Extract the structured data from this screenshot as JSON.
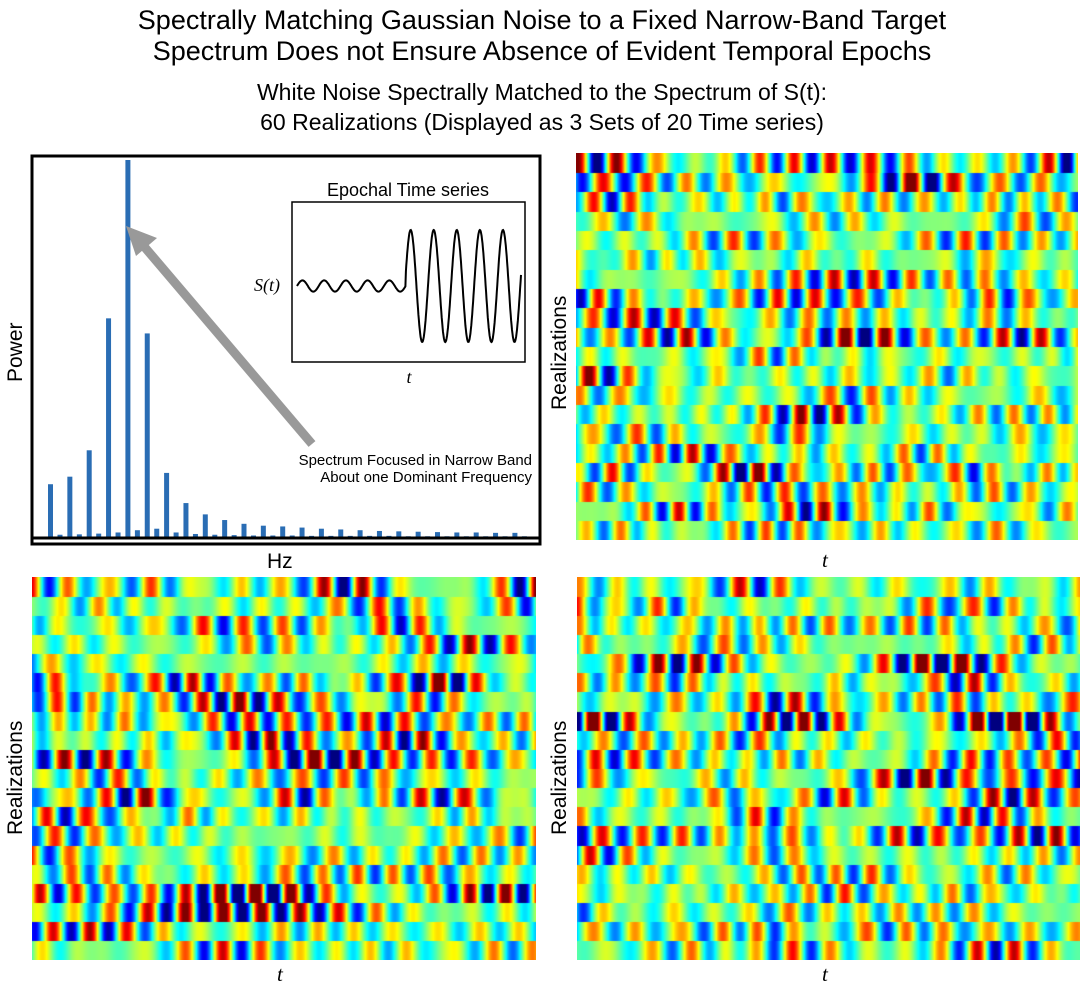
{
  "header": {
    "title_line1": "Spectrally Matching Gaussian Noise to a Fixed Narrow-Band Target",
    "title_line2": "Spectrum Does not Ensure Absence of Evident Temporal Epochs",
    "subtitle_line1": "White Noise Spectrally Matched to the Spectrum of S(t):",
    "subtitle_line2": "60 Realizations (Displayed as 3 Sets of 20 Time series)"
  },
  "colors": {
    "bar": "#2a6db4",
    "arrow": "#999999",
    "axes": "#000000"
  },
  "chart_data": [
    {
      "type": "bar",
      "xlabel": "Hz",
      "ylabel": "Power",
      "ylim": [
        0,
        1
      ],
      "values": [
        0.14,
        0.16,
        0.23,
        0.58,
        1.0,
        0.54,
        0.17,
        0.09,
        0.06,
        0.045,
        0.035,
        0.03,
        0.028,
        0.025,
        0.022,
        0.02,
        0.018,
        0.016,
        0.015,
        0.014,
        0.013,
        0.012,
        0.012,
        0.011,
        0.011
      ],
      "small_values": [
        0.006,
        0.007,
        0.009,
        0.012,
        0.018,
        0.022,
        0.012,
        0.008,
        0.006,
        0.005,
        0.004,
        0.004,
        0.004,
        0.003,
        0.003,
        0.003,
        0.003,
        0.003,
        0.002,
        0.002,
        0.002,
        0.002,
        0.002,
        0.002,
        0.002
      ],
      "annotation_line1": "Spectrum Focused in Narrow Band",
      "annotation_line2": "About one Dominant Frequency",
      "inset": {
        "type": "line",
        "title": "Epochal Time series",
        "ylabel": "S(t)",
        "xlabel": "t",
        "segments": [
          {
            "cycles": 5,
            "amplitude": 0.1
          },
          {
            "cycles": 5,
            "amplitude": 1.0
          }
        ]
      }
    },
    {
      "type": "heatmap",
      "ylabel": "Realizations",
      "xlabel": "t",
      "rows": 20,
      "colormap": "jet",
      "seed": 11
    },
    {
      "type": "heatmap",
      "ylabel": "Realizations",
      "xlabel": "t",
      "rows": 20,
      "colormap": "jet",
      "seed": 23
    },
    {
      "type": "heatmap",
      "ylabel": "Realizations",
      "xlabel": "t",
      "rows": 20,
      "colormap": "jet",
      "seed": 37
    }
  ]
}
